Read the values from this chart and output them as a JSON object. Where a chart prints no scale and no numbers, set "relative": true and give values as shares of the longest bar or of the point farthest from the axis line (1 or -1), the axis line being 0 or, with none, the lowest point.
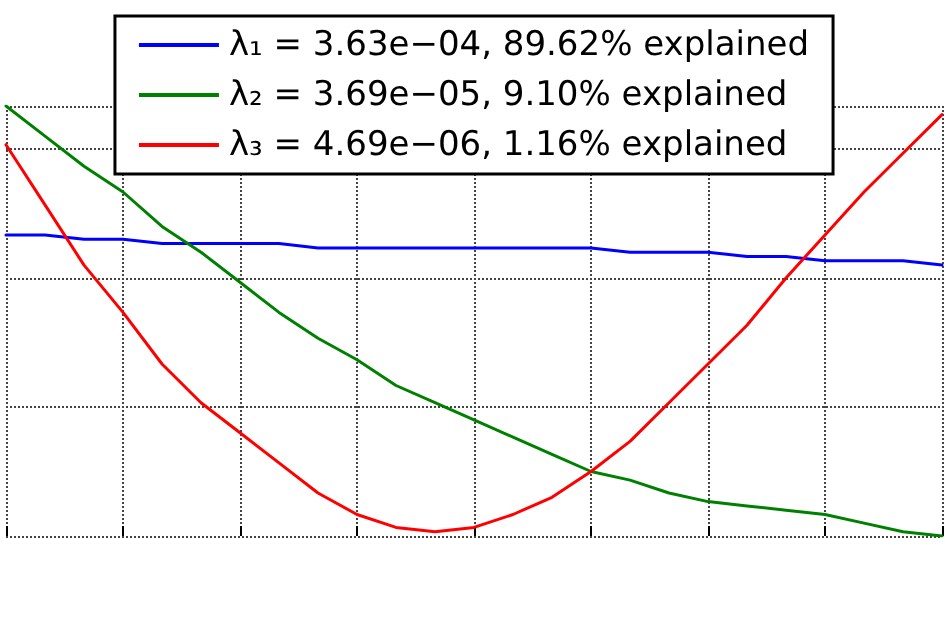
{
  "chart_data": {
    "type": "line",
    "relative": true,
    "grid": true,
    "legend": "top",
    "marker": "none",
    "line_style": "solid",
    "categories": [
      null,
      null,
      null,
      null,
      null,
      null,
      null,
      null,
      null,
      null,
      null,
      null,
      null,
      null,
      null,
      null,
      null,
      null,
      null,
      null,
      null,
      null,
      null,
      null,
      null
    ],
    "series": [
      {
        "name": "λ₁ = 3.63e−04, 89.62% explained",
        "color": "#0000ff",
        "values": [
          0.7,
          0.7,
          0.69,
          0.69,
          0.68,
          0.68,
          0.68,
          0.68,
          0.67,
          0.67,
          0.67,
          0.67,
          0.67,
          0.67,
          0.67,
          0.67,
          0.66,
          0.66,
          0.66,
          0.65,
          0.65,
          0.64,
          0.64,
          0.64,
          0.63
        ]
      },
      {
        "name": "λ₂ = 3.69e−05, 9.10% explained",
        "color": "#008000",
        "values": [
          1.0,
          0.93,
          0.86,
          0.8,
          0.72,
          0.66,
          0.59,
          0.52,
          0.46,
          0.41,
          0.35,
          0.31,
          0.27,
          0.23,
          0.19,
          0.15,
          0.13,
          0.1,
          0.08,
          0.07,
          0.06,
          0.05,
          0.03,
          0.01,
          0.0
        ]
      },
      {
        "name": "λ₃ = 4.69e−06, 1.16% explained",
        "color": "#ff0000",
        "values": [
          0.91,
          0.77,
          0.63,
          0.52,
          0.4,
          0.31,
          0.24,
          0.17,
          0.1,
          0.05,
          0.02,
          0.01,
          0.02,
          0.05,
          0.09,
          0.15,
          0.22,
          0.31,
          0.4,
          0.49,
          0.6,
          0.7,
          0.8,
          0.89,
          0.98
        ]
      }
    ]
  }
}
